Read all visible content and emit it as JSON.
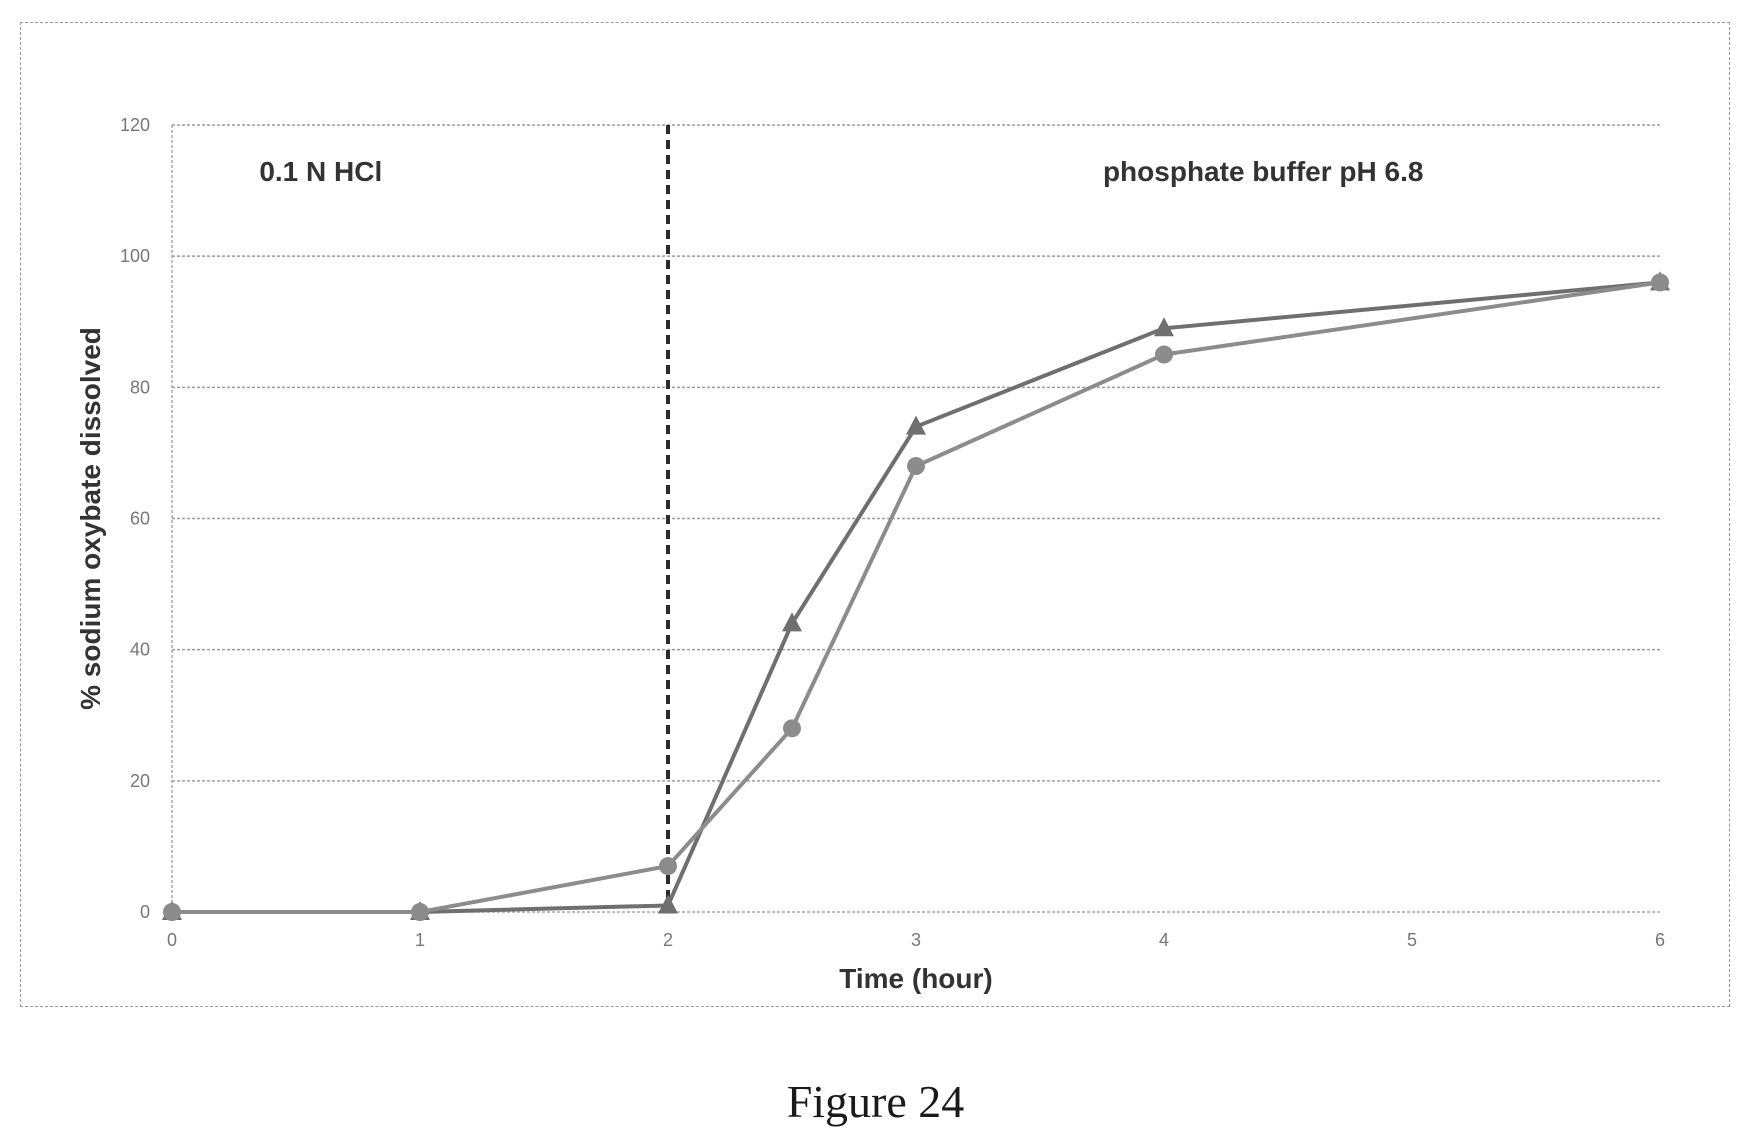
{
  "chart_data": {
    "type": "line",
    "title": "",
    "xlabel": "Time (hour)",
    "ylabel": "% sodium oxybate dissolved",
    "xlim": [
      0,
      6
    ],
    "ylim": [
      0,
      120
    ],
    "x_ticks": [
      0,
      1,
      2,
      3,
      4,
      5,
      6
    ],
    "y_ticks": [
      0,
      20,
      40,
      60,
      80,
      100,
      120
    ],
    "grid": "horizontal-dashed",
    "legend": "none",
    "annotations": [
      {
        "text": "0.1 N HCl",
        "x": 0.6,
        "y": 113
      },
      {
        "text": "phosphate buffer pH 6.8",
        "x": 4.4,
        "y": 113
      }
    ],
    "reference_lines": [
      {
        "orientation": "vertical",
        "x": 2,
        "style": "dashed"
      }
    ],
    "series": [
      {
        "marker": "triangle",
        "color": "#6f6f6f",
        "points": [
          [
            0,
            0
          ],
          [
            1,
            0
          ],
          [
            2,
            1
          ],
          [
            2.5,
            44
          ],
          [
            3,
            74
          ],
          [
            4,
            89
          ],
          [
            6,
            96
          ]
        ]
      },
      {
        "marker": "circle",
        "color": "#8c8c8c",
        "points": [
          [
            0,
            0
          ],
          [
            1,
            0
          ],
          [
            2,
            7
          ],
          [
            2.5,
            28
          ],
          [
            3,
            68
          ],
          [
            4,
            85
          ],
          [
            6,
            96
          ]
        ]
      }
    ]
  },
  "caption": "Figure 24"
}
